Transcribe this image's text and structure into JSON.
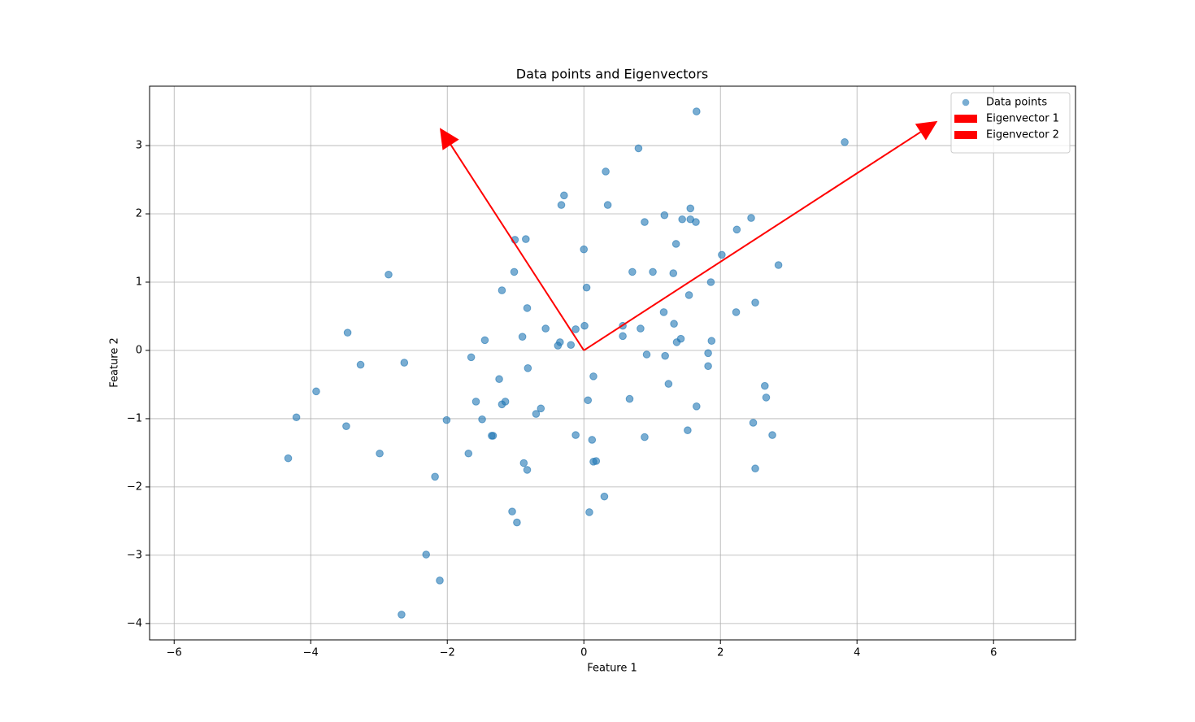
{
  "chart_data": {
    "type": "scatter",
    "title": "Data points and Eigenvectors",
    "xlabel": "Feature 1",
    "ylabel": "Feature 2",
    "xlim": [
      -6.36,
      7.2
    ],
    "ylim": [
      -4.24,
      3.87
    ],
    "xticks": [
      {
        "value": -6,
        "label": "−6"
      },
      {
        "value": -4,
        "label": "−4"
      },
      {
        "value": -2,
        "label": "−2"
      },
      0,
      2,
      4,
      6
    ],
    "yticks": [
      {
        "value": -4,
        "label": "−4"
      },
      {
        "value": -3,
        "label": "−3"
      },
      {
        "value": -2,
        "label": "−2"
      },
      {
        "value": -1,
        "label": "−1"
      },
      0,
      1,
      2,
      3
    ],
    "grid": true,
    "legend": "upper right",
    "series": [
      {
        "name": "Data points",
        "color": "#1f77b4",
        "x": [
          1.65,
          3.82,
          0.8,
          0.32,
          -0.29,
          -0.33,
          0.35,
          1.56,
          1.18,
          2.45,
          1.44,
          1.56,
          1.64,
          0.89,
          2.24,
          -1.01,
          -0.85,
          1.35,
          0.0,
          2.02,
          2.85,
          -2.86,
          -1.02,
          0.71,
          1.01,
          1.31,
          1.86,
          0.04,
          -1.2,
          1.54,
          2.51,
          -0.83,
          1.17,
          2.23,
          0.57,
          0.01,
          1.32,
          0.83,
          -0.12,
          -0.56,
          -3.46,
          -0.9,
          0.57,
          1.42,
          -1.45,
          1.87,
          1.36,
          -0.35,
          -0.38,
          -0.19,
          -1.65,
          -2.63,
          1.82,
          0.92,
          1.19,
          -3.27,
          1.82,
          -0.82,
          0.14,
          -1.24,
          1.24,
          2.65,
          -3.92,
          2.67,
          0.67,
          0.06,
          -1.58,
          -1.15,
          -1.2,
          1.65,
          -0.63,
          -0.7,
          -4.21,
          -2.01,
          -1.49,
          -3.48,
          2.48,
          1.52,
          -1.33,
          -1.35,
          -0.12,
          2.76,
          0.89,
          0.12,
          -2.99,
          -1.69,
          -4.33,
          -0.88,
          0.14,
          0.18,
          -0.83,
          2.51,
          -2.18,
          0.3,
          -1.05,
          0.08,
          -0.98,
          -2.31,
          -2.11,
          -2.67
        ],
        "values": [
          3.5,
          3.05,
          2.96,
          2.62,
          2.27,
          2.13,
          2.13,
          2.08,
          1.98,
          1.94,
          1.92,
          1.92,
          1.88,
          1.88,
          1.77,
          1.62,
          1.63,
          1.56,
          1.48,
          1.4,
          1.25,
          1.11,
          1.15,
          1.15,
          1.15,
          1.13,
          1.0,
          0.92,
          0.88,
          0.81,
          0.7,
          0.62,
          0.56,
          0.56,
          0.36,
          0.36,
          0.39,
          0.32,
          0.31,
          0.32,
          0.26,
          0.2,
          0.21,
          0.17,
          0.15,
          0.14,
          0.12,
          0.12,
          0.07,
          0.08,
          -0.1,
          -0.18,
          -0.04,
          -0.06,
          -0.08,
          -0.21,
          -0.23,
          -0.26,
          -0.38,
          -0.42,
          -0.49,
          -0.52,
          -0.6,
          -0.69,
          -0.71,
          -0.73,
          -0.75,
          -0.75,
          -0.79,
          -0.82,
          -0.85,
          -0.93,
          -0.98,
          -1.02,
          -1.01,
          -1.11,
          -1.06,
          -1.17,
          -1.25,
          -1.25,
          -1.24,
          -1.24,
          -1.27,
          -1.31,
          -1.51,
          -1.51,
          -1.58,
          -1.65,
          -1.63,
          -1.62,
          -1.75,
          -1.73,
          -1.85,
          -2.14,
          -2.36,
          -2.37,
          -2.52,
          -2.99,
          -3.37,
          -3.87
        ]
      }
    ],
    "vectors": [
      {
        "name": "Eigenvector 1",
        "color": "#ff0000",
        "x0": 0,
        "y0": 0,
        "dx": -2.11,
        "dy": 3.26
      },
      {
        "name": "Eigenvector 2",
        "color": "#ff0000",
        "x0": 0,
        "y0": 0,
        "dx": 5.18,
        "dy": 3.36
      }
    ]
  }
}
